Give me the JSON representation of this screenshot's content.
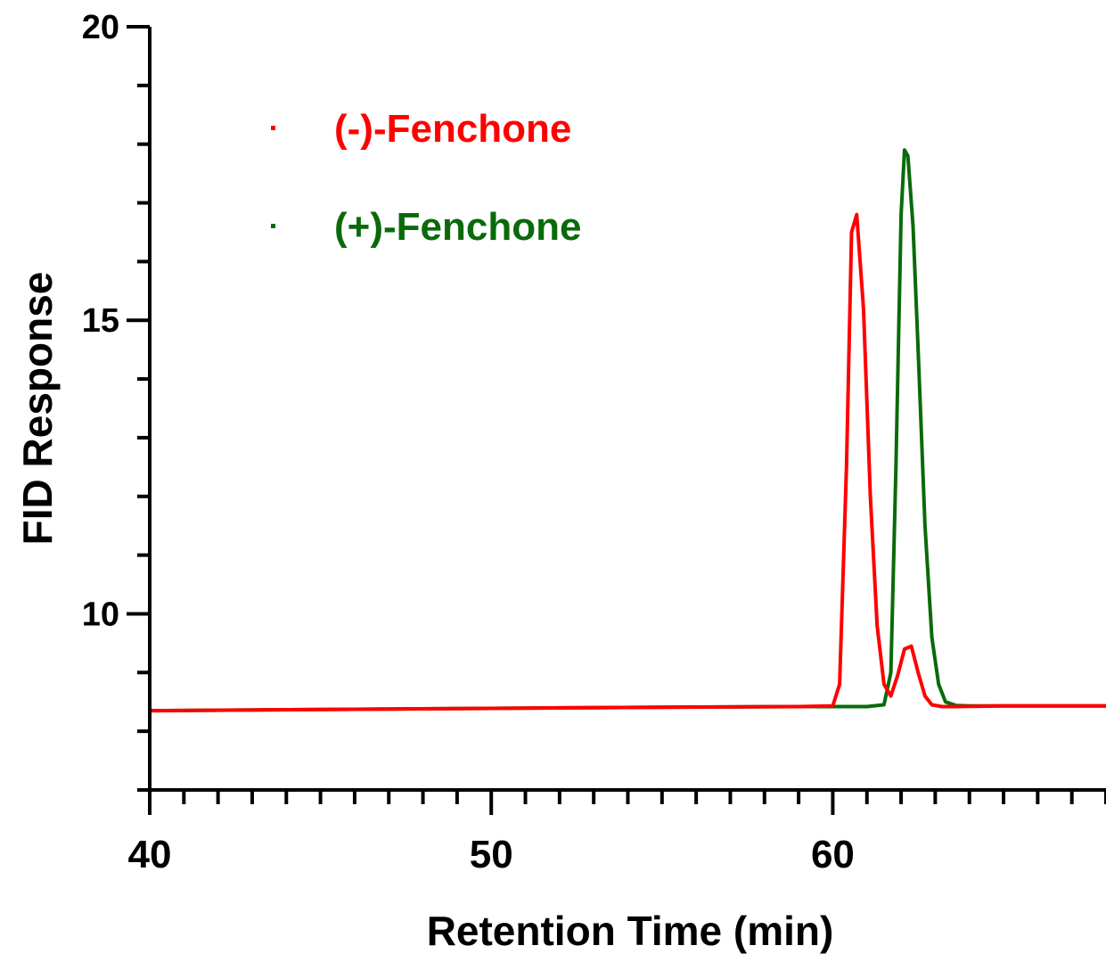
{
  "chart_data": {
    "type": "line",
    "title": "",
    "xlabel": "Retention Time (min)",
    "ylabel": "FID Response",
    "xlim": [
      40,
      68
    ],
    "ylim": [
      7,
      20
    ],
    "x_ticks": [
      40,
      50,
      60
    ],
    "y_ticks": [
      10,
      15,
      20
    ],
    "x_minor_step": 1,
    "y_minor_step": 1,
    "grid": false,
    "legend": "top-left",
    "series": [
      {
        "name": "(-)-Fenchone",
        "color": "#ff0000",
        "x": [
          40,
          45,
          50,
          55,
          59,
          60.0,
          60.2,
          60.4,
          60.55,
          60.7,
          60.9,
          61.1,
          61.3,
          61.5,
          61.7,
          61.9,
          62.1,
          62.3,
          62.5,
          62.7,
          62.9,
          63.2,
          63.6,
          65,
          68
        ],
        "values": [
          8.35,
          8.37,
          8.39,
          8.41,
          8.42,
          8.43,
          8.8,
          12.5,
          16.5,
          16.8,
          15.2,
          12.0,
          9.8,
          8.8,
          8.6,
          8.95,
          9.4,
          9.45,
          9.0,
          8.6,
          8.45,
          8.42,
          8.42,
          8.43,
          8.43
        ]
      },
      {
        "name": "(+)-Fenchone",
        "color": "#0a6a0a",
        "x": [
          40,
          45,
          50,
          55,
          59,
          61.0,
          61.5,
          61.7,
          61.85,
          62.0,
          62.1,
          62.2,
          62.35,
          62.5,
          62.7,
          62.9,
          63.1,
          63.3,
          63.6,
          64,
          65,
          68
        ],
        "values": [
          8.35,
          8.37,
          8.39,
          8.41,
          8.42,
          8.42,
          8.45,
          9.0,
          12.5,
          16.8,
          17.9,
          17.8,
          16.6,
          14.5,
          11.5,
          9.6,
          8.8,
          8.5,
          8.44,
          8.43,
          8.43,
          8.43
        ]
      }
    ]
  }
}
